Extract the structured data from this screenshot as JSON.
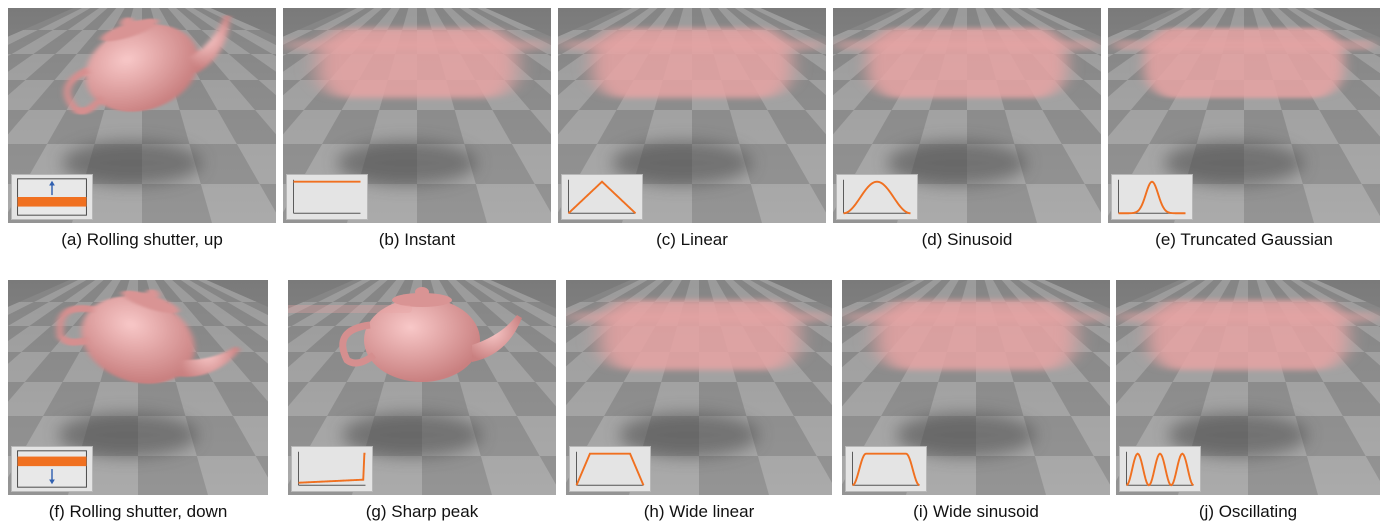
{
  "figure": {
    "panels": [
      {
        "id": "a",
        "caption": "(a) Rolling shutter, up",
        "profile": "rolling-up",
        "pose": "tilt-left",
        "blur": 3
      },
      {
        "id": "b",
        "caption": "(b) Instant",
        "profile": "instant",
        "pose": "blurred",
        "blur": 10
      },
      {
        "id": "c",
        "caption": "(c) Linear",
        "profile": "linear",
        "pose": "blurred",
        "blur": 9
      },
      {
        "id": "d",
        "caption": "(d) Sinusoid",
        "profile": "sinusoid",
        "pose": "blurred",
        "blur": 8
      },
      {
        "id": "e",
        "caption": "(e) Truncated Gaussian",
        "profile": "gaussian",
        "pose": "blurred",
        "blur": 6
      },
      {
        "id": "f",
        "caption": "(f) Rolling shutter, down",
        "profile": "rolling-down",
        "pose": "tilt-right",
        "blur": 3
      },
      {
        "id": "g",
        "caption": "(g) Sharp peak",
        "profile": "sharp-peak",
        "pose": "sharp",
        "blur": 0
      },
      {
        "id": "h",
        "caption": "(h) Wide linear",
        "profile": "wide-linear",
        "pose": "blurred",
        "blur": 10
      },
      {
        "id": "i",
        "caption": "(i) Wide sinusoid",
        "profile": "wide-sinusoid",
        "pose": "blurred",
        "blur": 10
      },
      {
        "id": "j",
        "caption": "(j) Oscillating",
        "profile": "oscillating",
        "pose": "blurred",
        "blur": 9
      }
    ],
    "colors": {
      "teapot": "#e8a3a3",
      "profile_line": "#f07020",
      "arrow": "#3060b0",
      "floor_light": "#b6b6b6",
      "floor_dark": "#8e8e8e"
    }
  }
}
